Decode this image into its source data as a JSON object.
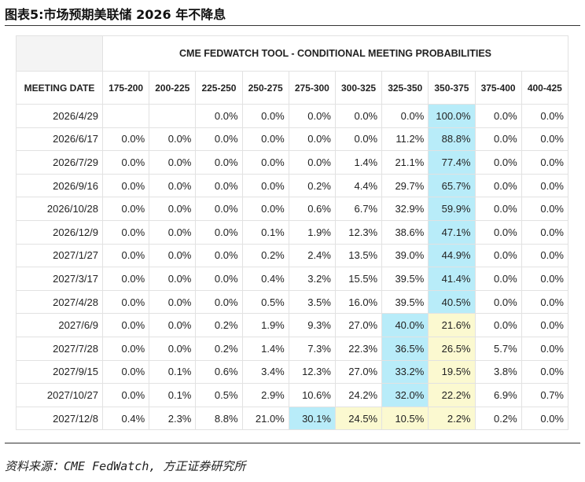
{
  "header": {
    "title": "图表5:市场预期美联储 2026 年不降息"
  },
  "table": {
    "super_header": "CME FEDWATCH TOOL - CONDITIONAL MEETING PROBABILITIES",
    "columns": [
      "MEETING DATE",
      "175-200",
      "200-225",
      "225-250",
      "250-275",
      "275-300",
      "300-325",
      "325-350",
      "350-375",
      "375-400",
      "400-425"
    ],
    "rows": [
      {
        "date": "2026/4/29",
        "cells": [
          null,
          null,
          "0.0%",
          "0.0%",
          "0.0%",
          "0.0%",
          "0.0%",
          "100.0%",
          "0.0%",
          "0.0%"
        ],
        "fills": [
          null,
          null,
          null,
          null,
          null,
          null,
          null,
          "#b8ecf9",
          null,
          null
        ]
      },
      {
        "date": "2026/6/17",
        "cells": [
          "0.0%",
          "0.0%",
          "0.0%",
          "0.0%",
          "0.0%",
          "0.0%",
          "11.2%",
          "88.8%",
          "0.0%",
          "0.0%"
        ],
        "fills": [
          null,
          null,
          null,
          null,
          null,
          null,
          null,
          "#b8ecf9",
          null,
          null
        ]
      },
      {
        "date": "2026/7/29",
        "cells": [
          "0.0%",
          "0.0%",
          "0.0%",
          "0.0%",
          "0.0%",
          "1.4%",
          "21.1%",
          "77.4%",
          "0.0%",
          "0.0%"
        ],
        "fills": [
          null,
          null,
          null,
          null,
          null,
          null,
          null,
          "#b8ecf9",
          null,
          null
        ]
      },
      {
        "date": "2026/9/16",
        "cells": [
          "0.0%",
          "0.0%",
          "0.0%",
          "0.0%",
          "0.2%",
          "4.4%",
          "29.7%",
          "65.7%",
          "0.0%",
          "0.0%"
        ],
        "fills": [
          null,
          null,
          null,
          null,
          null,
          null,
          null,
          "#b8ecf9",
          null,
          null
        ]
      },
      {
        "date": "2026/10/28",
        "cells": [
          "0.0%",
          "0.0%",
          "0.0%",
          "0.0%",
          "0.6%",
          "6.7%",
          "32.9%",
          "59.9%",
          "0.0%",
          "0.0%"
        ],
        "fills": [
          null,
          null,
          null,
          null,
          null,
          null,
          null,
          "#b8ecf9",
          null,
          null
        ]
      },
      {
        "date": "2026/12/9",
        "cells": [
          "0.0%",
          "0.0%",
          "0.0%",
          "0.1%",
          "1.9%",
          "12.3%",
          "38.6%",
          "47.1%",
          "0.0%",
          "0.0%"
        ],
        "fills": [
          null,
          null,
          null,
          null,
          null,
          null,
          null,
          "#b8ecf9",
          null,
          null
        ]
      },
      {
        "date": "2027/1/27",
        "cells": [
          "0.0%",
          "0.0%",
          "0.0%",
          "0.2%",
          "2.4%",
          "13.5%",
          "39.0%",
          "44.9%",
          "0.0%",
          "0.0%"
        ],
        "fills": [
          null,
          null,
          null,
          null,
          null,
          null,
          null,
          "#b8ecf9",
          null,
          null
        ]
      },
      {
        "date": "2027/3/17",
        "cells": [
          "0.0%",
          "0.0%",
          "0.0%",
          "0.4%",
          "3.2%",
          "15.5%",
          "39.5%",
          "41.4%",
          "0.0%",
          "0.0%"
        ],
        "fills": [
          null,
          null,
          null,
          null,
          null,
          null,
          null,
          "#b8ecf9",
          null,
          null
        ]
      },
      {
        "date": "2027/4/28",
        "cells": [
          "0.0%",
          "0.0%",
          "0.0%",
          "0.5%",
          "3.5%",
          "16.0%",
          "39.5%",
          "40.5%",
          "0.0%",
          "0.0%"
        ],
        "fills": [
          null,
          null,
          null,
          null,
          null,
          null,
          null,
          "#b8ecf9",
          null,
          null
        ]
      },
      {
        "date": "2027/6/9",
        "cells": [
          "0.0%",
          "0.0%",
          "0.2%",
          "1.9%",
          "9.3%",
          "27.0%",
          "40.0%",
          "21.6%",
          "0.0%",
          "0.0%"
        ],
        "fills": [
          null,
          null,
          null,
          null,
          null,
          null,
          "#b8ecf9",
          "#fbf9d0",
          null,
          null
        ]
      },
      {
        "date": "2027/7/28",
        "cells": [
          "0.0%",
          "0.0%",
          "0.2%",
          "1.4%",
          "7.3%",
          "22.3%",
          "36.5%",
          "26.5%",
          "5.7%",
          "0.0%"
        ],
        "fills": [
          null,
          null,
          null,
          null,
          null,
          null,
          "#b8ecf9",
          "#fbf9d0",
          null,
          null
        ]
      },
      {
        "date": "2027/9/15",
        "cells": [
          "0.0%",
          "0.1%",
          "0.6%",
          "3.4%",
          "12.3%",
          "27.0%",
          "33.2%",
          "19.5%",
          "3.8%",
          "0.0%"
        ],
        "fills": [
          null,
          null,
          null,
          null,
          null,
          null,
          "#b8ecf9",
          "#fbf9d0",
          null,
          null
        ]
      },
      {
        "date": "2027/10/27",
        "cells": [
          "0.0%",
          "0.1%",
          "0.5%",
          "2.9%",
          "10.6%",
          "24.2%",
          "32.0%",
          "22.2%",
          "6.9%",
          "0.7%"
        ],
        "fills": [
          null,
          null,
          null,
          null,
          null,
          null,
          "#b8ecf9",
          "#fbf9d0",
          null,
          null
        ]
      },
      {
        "date": "2027/12/8",
        "cells": [
          "0.4%",
          "2.3%",
          "8.8%",
          "21.0%",
          "30.1%",
          "24.5%",
          "10.5%",
          "2.2%",
          "0.2%",
          "0.0%"
        ],
        "fills": [
          null,
          null,
          null,
          null,
          "#b8ecf9",
          "#fbf9d0",
          "#fbf9d0",
          "#fbf9d0",
          null,
          null
        ]
      }
    ]
  },
  "footer": {
    "source": "资料来源：CME FedWatch, 方正证券研究所"
  }
}
